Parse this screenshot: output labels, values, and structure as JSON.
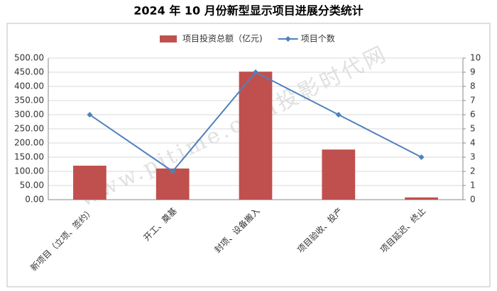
{
  "chart_data": {
    "type": "bar",
    "title": "2024 年 10 月份新型显示项目进展分类统计",
    "watermark": "www.pjtime.com投影时代网",
    "categories": [
      "新项目（立项、签约）",
      "开工、奠基",
      "封项、设备搬入",
      "项目验收、投产",
      "项目延迟、终止"
    ],
    "series": [
      {
        "name": "项目投资总额（亿元)",
        "type": "bar",
        "color": "#c0504d",
        "values": [
          120,
          110,
          452,
          177,
          8
        ]
      },
      {
        "name": "项目个数",
        "type": "line",
        "axis": "y2",
        "color": "#4f81bd",
        "values": [
          6,
          2,
          9,
          6,
          3
        ]
      }
    ],
    "ylim": [
      0,
      500
    ],
    "yticks": [
      {
        "value": 0,
        "label": "0.00"
      },
      {
        "value": 50,
        "label": "50.00"
      },
      {
        "value": 100,
        "label": "100.00"
      },
      {
        "value": 150,
        "label": "150.00"
      },
      {
        "value": 200,
        "label": "200.00"
      },
      {
        "value": 250,
        "label": "250.00"
      },
      {
        "value": 300,
        "label": "300.00"
      },
      {
        "value": 350,
        "label": "350.00"
      },
      {
        "value": 400,
        "label": "400.00"
      },
      {
        "value": 450,
        "label": "450.00"
      },
      {
        "value": 500,
        "label": "500.00"
      }
    ],
    "y2lim": [
      0,
      10
    ],
    "y2ticks": [
      0,
      1,
      2,
      3,
      4,
      5,
      6,
      7,
      8,
      9,
      10
    ],
    "legend": "top"
  }
}
